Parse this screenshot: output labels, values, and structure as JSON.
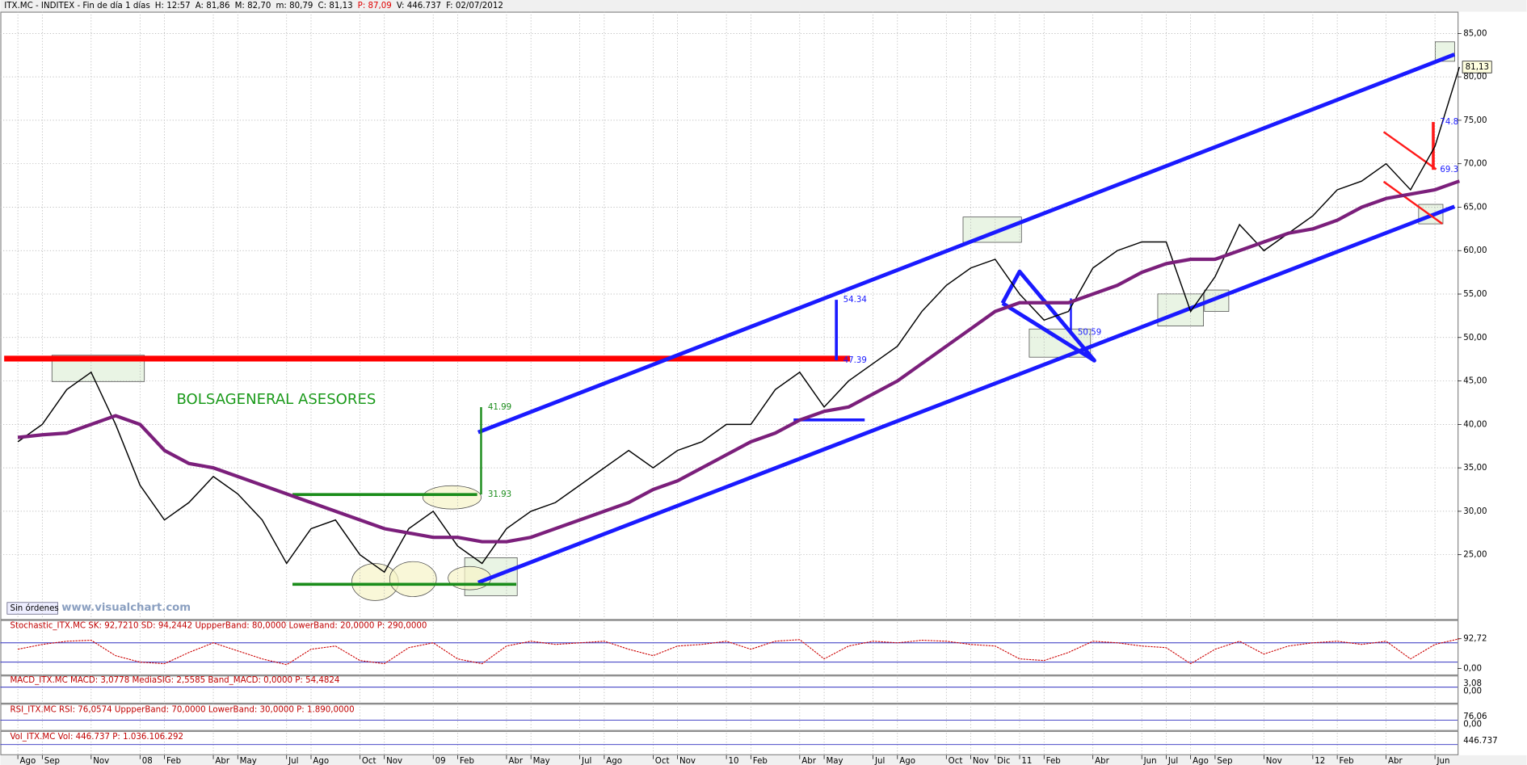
{
  "header": [
    {
      "text": "ITX.MC - INDITEX - Fin de día 1 días",
      "color": "#000000"
    },
    {
      "text": "H: 12:57",
      "color": "#000000"
    },
    {
      "text": "A: 81,86",
      "color": "#000000"
    },
    {
      "text": "M: 82,70",
      "color": "#000000"
    },
    {
      "text": "m: 80,79",
      "color": "#000000"
    },
    {
      "text": "C: 81,13",
      "color": "#000000"
    },
    {
      "text": "P: 87,09",
      "color": "#e00000"
    },
    {
      "text": "V: 446.737",
      "color": "#000000"
    },
    {
      "text": "F: 02/07/2012",
      "color": "#000000"
    }
  ],
  "chart_data": [
    {
      "type": "line",
      "categories": [
        "Ago",
        "Sep",
        null,
        "Nov",
        null,
        "08",
        "Feb",
        null,
        "Abr",
        "May",
        null,
        "Jul",
        "Ago",
        null,
        "Oct",
        "Nov",
        null,
        "09",
        "Feb",
        null,
        "Abr",
        "May",
        null,
        "Jul",
        "Ago",
        null,
        "Oct",
        "Nov",
        null,
        "10",
        "Feb",
        null,
        "Abr",
        "May",
        null,
        "Jul",
        "Ago",
        null,
        "Oct",
        "Nov",
        "Dic",
        "11",
        "Feb",
        null,
        "Abr",
        null,
        "Jun",
        "Jul",
        "Ago",
        "Sep",
        null,
        "Nov",
        null,
        "12",
        "Feb",
        null,
        "Abr",
        null,
        "Jun",
        null
      ],
      "series": [
        {
          "color": "#000000",
          "values": [
            38,
            40,
            44,
            46,
            40,
            33,
            29,
            31,
            34,
            32,
            29,
            24,
            28,
            29,
            25,
            23,
            28,
            30,
            26,
            24,
            28,
            30,
            31,
            33,
            35,
            37,
            35,
            37,
            38,
            40,
            40,
            44,
            46,
            42,
            45,
            47,
            49,
            53,
            56,
            58,
            59,
            55,
            52,
            53,
            58,
            60,
            61,
            61,
            53,
            57,
            63,
            60,
            62,
            64,
            67,
            68,
            70,
            67,
            72,
            81.13
          ]
        },
        {
          "color": "#7b1f7b",
          "values": [
            38.5,
            38.8,
            39,
            40,
            41,
            40,
            37,
            35.5,
            35,
            34,
            33,
            32,
            31,
            30,
            29,
            28,
            27.5,
            27,
            27,
            26.5,
            26.5,
            27,
            28,
            29,
            30,
            31,
            32.5,
            33.5,
            35,
            36.5,
            38,
            39,
            40.5,
            41.5,
            42,
            43.5,
            45,
            47,
            49,
            51,
            53,
            54,
            54,
            54,
            55,
            56,
            57.5,
            58.5,
            59,
            59,
            60,
            61,
            62,
            62.5,
            63.5,
            65,
            66,
            66.5,
            67,
            68
          ]
        }
      ],
      "ylim": [
        17.6,
        87.5
      ],
      "yticks": [
        {
          "value": 25,
          "label": "25,00"
        },
        {
          "value": 30,
          "label": "30,00"
        },
        {
          "value": 35,
          "label": "35,00"
        },
        {
          "value": 40,
          "label": "40,00"
        },
        {
          "value": 45,
          "label": "45,00"
        },
        {
          "value": 50,
          "label": "50,00"
        },
        {
          "value": 55,
          "label": "55,00"
        },
        {
          "value": 60,
          "label": "60,00"
        },
        {
          "value": 65,
          "label": "65,00"
        },
        {
          "value": 70,
          "label": "70,00"
        },
        {
          "value": 75,
          "label": "75,00"
        },
        {
          "value": 80,
          "label": "80,00"
        },
        {
          "value": 85,
          "label": "85,00"
        }
      ],
      "grid": true,
      "last_value_label": "81,13",
      "trend_lines": [
        {
          "color": "#ff0000",
          "width": 6,
          "x": [
            -0.56,
            34.06
          ],
          "y": [
            47.57,
            47.57
          ]
        },
        {
          "color": "#1a1aff",
          "width": 4,
          "x": [
            18.84,
            58.8
          ],
          "y": [
            39.09,
            82.58
          ]
        },
        {
          "color": "#1a1aff",
          "width": 4,
          "x": [
            18.84,
            58.8
          ],
          "y": [
            21.8,
            65.07
          ]
        },
        {
          "color": "#1a8c1a",
          "width": 3,
          "x": [
            11.24,
            18.8
          ],
          "y": [
            31.93,
            31.93
          ]
        },
        {
          "color": "#1a8c1a",
          "width": 3,
          "x": [
            11.24,
            20.4
          ],
          "y": [
            21.59,
            21.59
          ]
        },
        {
          "color": "#1a8c1a",
          "width": 2,
          "x": [
            18.96,
            18.96
          ],
          "y": [
            31.93,
            41.99
          ]
        },
        {
          "color": "#1a1aff",
          "width": 3,
          "x": [
            33.5,
            33.5
          ],
          "y": [
            47.39,
            54.34
          ]
        },
        {
          "color": "#1a1aff",
          "width": 3,
          "x": [
            31.75,
            34.66
          ],
          "y": [
            40.52,
            40.52
          ]
        },
        {
          "color": "#1a1aff",
          "width": 4,
          "x": [
            40.3,
            41.0,
            44.06,
            40.3
          ],
          "y": [
            53.95,
            57.59,
            47.35,
            53.95
          ]
        },
        {
          "color": "#1a1aff",
          "width": 2,
          "x": [
            43.1,
            43.1
          ],
          "y": [
            50.59,
            54.5
          ]
        },
        {
          "color": "#ff1a1a",
          "width": 2,
          "x": [
            55.9,
            58.05
          ],
          "y": [
            73.66,
            69.37
          ]
        },
        {
          "color": "#ff1a1a",
          "width": 2,
          "x": [
            55.9,
            58.3
          ],
          "y": [
            67.94,
            63.09
          ]
        },
        {
          "color": "#ff1a1a",
          "width": 3,
          "x": [
            57.93,
            57.93
          ],
          "y": [
            69.3,
            74.8
          ]
        }
      ],
      "annotations": [
        {
          "value": 41.99,
          "x": 18.96,
          "color": "#1a8c1a"
        },
        {
          "value": 31.93,
          "x": 18.96,
          "color": "#1a8c1a"
        },
        {
          "value": 54.34,
          "x": 33.5,
          "color": "#1a1aff"
        },
        {
          "value": 47.39,
          "x": 33.5,
          "color": "#1a1aff"
        },
        {
          "value": 50.59,
          "x": 43.1,
          "color": "#1a1aff"
        },
        {
          "value": 74.8,
          "x": 57.93,
          "color": "#1a1aff"
        },
        {
          "value": 69.3,
          "x": 57.93,
          "color": "#1a1aff"
        }
      ],
      "texts": {
        "watermark": "BOLSAGENERAL ASESORES",
        "url": "www.visualchart.com",
        "status": "Sin órdenes"
      }
    },
    {
      "type": "line",
      "title": "Stochastic_ITX.MC SK: 92,7210 SD: 94,2442 UppperBand: 80,0000 LowerBand: 20,0000 P: 290,0000",
      "series": [
        {
          "color": "#cc0000",
          "values": [
            60,
            75,
            85,
            88,
            40,
            20,
            15,
            50,
            80,
            55,
            30,
            12,
            60,
            70,
            25,
            15,
            65,
            80,
            30,
            15,
            70,
            85,
            75,
            80,
            85,
            60,
            40,
            70,
            75,
            85,
            60,
            85,
            90,
            30,
            70,
            85,
            80,
            88,
            85,
            75,
            70,
            30,
            25,
            50,
            85,
            80,
            70,
            65,
            15,
            60,
            85,
            45,
            70,
            80,
            85,
            75,
            85,
            30,
            75,
            92.72
          ]
        }
      ],
      "bands": [
        80,
        20
      ],
      "ylim": [
        -18.5,
        142
      ],
      "yticks": [
        {
          "value": 92.72,
          "label": "92,72"
        },
        {
          "value": 0,
          "label": "0,00"
        }
      ]
    },
    {
      "type": "panel",
      "title": "MACD_ITX.MC MACD: 3,0778 MediaSIG: 2,5585 Band_MACD: 0,0000 P: 54,4824",
      "tick_labels": [
        "3,08",
        "0,00"
      ]
    },
    {
      "type": "panel",
      "title": "RSI_ITX.MC RSI: 76,0574 UppperBand: 70,0000 LowerBand: 30,0000 P: 1.890,0000",
      "tick_labels": [
        "76,06",
        "0,00"
      ]
    },
    {
      "type": "panel",
      "title": "Vol_ITX.MC Vol: 446.737 P: 1.036.106.292",
      "tick_labels": [
        "446.737"
      ]
    }
  ]
}
